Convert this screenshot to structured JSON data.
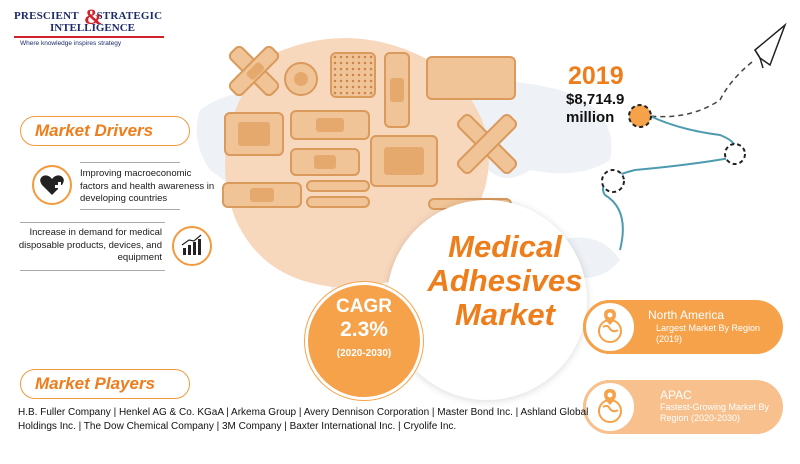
{
  "logo": {
    "line1": "PRESCIENT",
    "amp": "&",
    "line1b": "STRATEGIC",
    "line2": "INTELLIGENCE",
    "tagline": "Where knowledge inspires strategy"
  },
  "title": "Medical Adhesives Market",
  "drivers": {
    "heading": "Market Drivers",
    "items": [
      {
        "text": "Improving macroeconomic factors and health awareness in developing countries",
        "icon": "heart-plus-icon"
      },
      {
        "text": "Increase in demand for medical disposable products, devices, and equipment",
        "icon": "growth-chart-icon"
      }
    ]
  },
  "cagr": {
    "label": "CAGR",
    "value": "2.3%",
    "period": "(2020-2030)"
  },
  "market_size": {
    "year": "2019",
    "value": "$8,714.9",
    "unit": "million"
  },
  "regions": [
    {
      "name": "North America",
      "desc": "Largest Market By Region (2019)",
      "icon": "globe-pin-icon"
    },
    {
      "name": "APAC",
      "desc": "Fastest-Growing Market By Region (2020-2030)",
      "icon": "globe-pin-icon"
    }
  ],
  "players": {
    "heading": "Market Players",
    "list": "H.B. Fuller Company | Henkel AG & Co. KGaA | Arkema Group | Avery Dennison Corporation | Master Bond Inc. | Ashland Global Holdings Inc. | The Dow Chemical Company | 3M Company | Baxter International Inc. | Cryolife Inc."
  },
  "colors": {
    "accent": "#ee7d1c",
    "accent_light": "#f5a24a",
    "accent_pale": "#f7c08c",
    "logo_navy": "#1d2a6b",
    "logo_red": "#d0212a"
  }
}
